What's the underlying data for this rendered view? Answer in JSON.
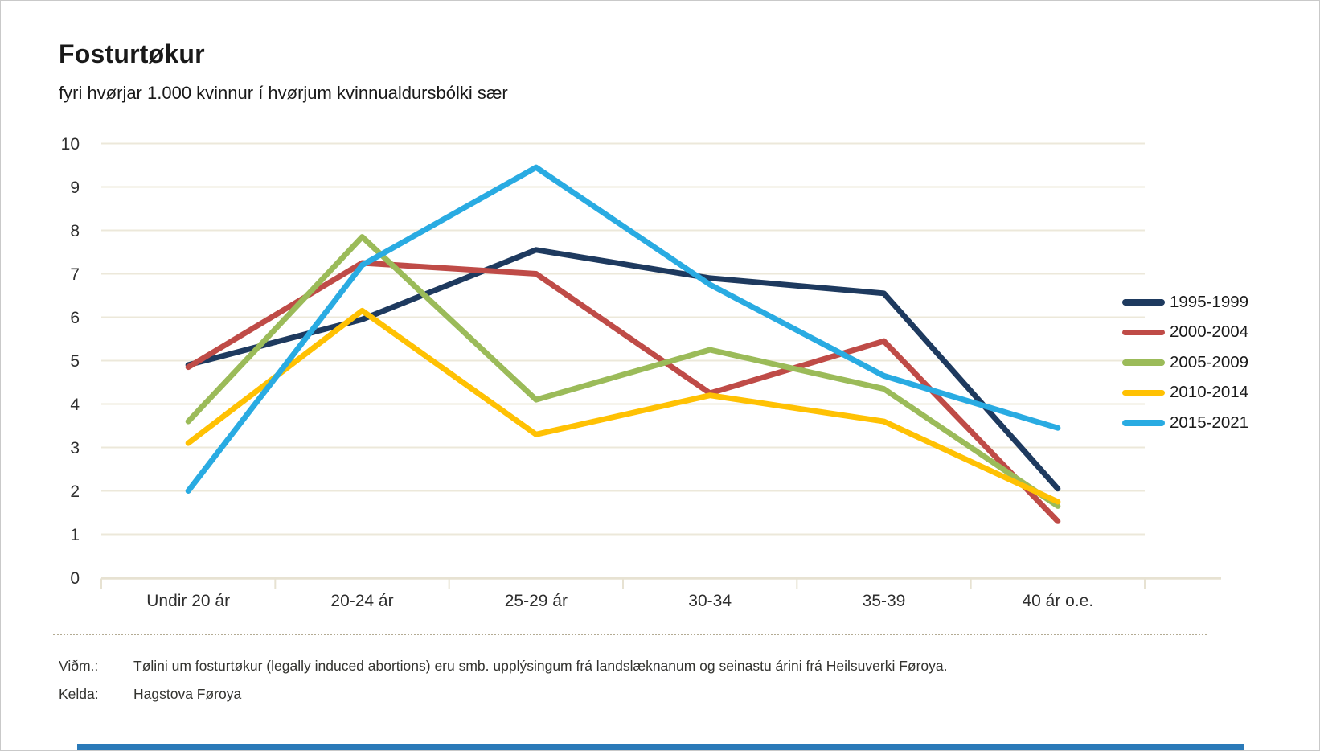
{
  "header": {
    "title": "Fosturtøkur",
    "subtitle": "fyri hvørjar 1.000 kvinnur í hvørjum kvinnualdursbólki sær"
  },
  "chart_data": {
    "type": "line",
    "categories": [
      "Undir 20 ár",
      "20-24 ár",
      "25-29 ár",
      "30-34",
      "35-39",
      "40 ár o.e."
    ],
    "series": [
      {
        "name": "1995-1999",
        "color": "#1e3a5f",
        "values": [
          4.9,
          5.95,
          7.55,
          6.9,
          6.55,
          2.05
        ]
      },
      {
        "name": "2000-2004",
        "color": "#bf4b47",
        "values": [
          4.85,
          7.25,
          7.0,
          4.25,
          5.45,
          1.3
        ]
      },
      {
        "name": "2005-2009",
        "color": "#9bbb59",
        "values": [
          3.6,
          7.85,
          4.1,
          5.25,
          4.35,
          1.65
        ]
      },
      {
        "name": "2010-2014",
        "color": "#ffc103",
        "values": [
          3.1,
          6.15,
          3.3,
          4.2,
          3.6,
          1.75
        ]
      },
      {
        "name": "2015-2021",
        "color": "#29abe2",
        "values": [
          2.0,
          7.2,
          9.45,
          6.75,
          4.65,
          3.45
        ]
      }
    ],
    "title": "Fosturtøkur",
    "subtitle": "fyri hvørjar 1.000 kvinnur í hvørjum kvinnualdursbólki sær",
    "xlabel": "",
    "ylabel": "",
    "ylim": [
      0,
      10
    ],
    "yticks": [
      0,
      1,
      2,
      3,
      4,
      5,
      6,
      7,
      8,
      9,
      10
    ],
    "grid": true,
    "legend_position": "right"
  },
  "footer": {
    "note_label": "Viðm.:",
    "note_text": "Tølini um fosturtøkur (legally induced abortions) eru smb. upplýsingum frá landslæknanum og seinastu árini frá Heilsuverki Føroya.",
    "source_label": "Kelda:",
    "source_text": "Hagstova Føroya"
  },
  "colors": {
    "grid_line": "#ece8da",
    "axis_line": "#e7e2d2",
    "tick_text": "#2e2e2e",
    "separator": "#b3ab93",
    "bottom_bar": "#2a7ab9"
  }
}
